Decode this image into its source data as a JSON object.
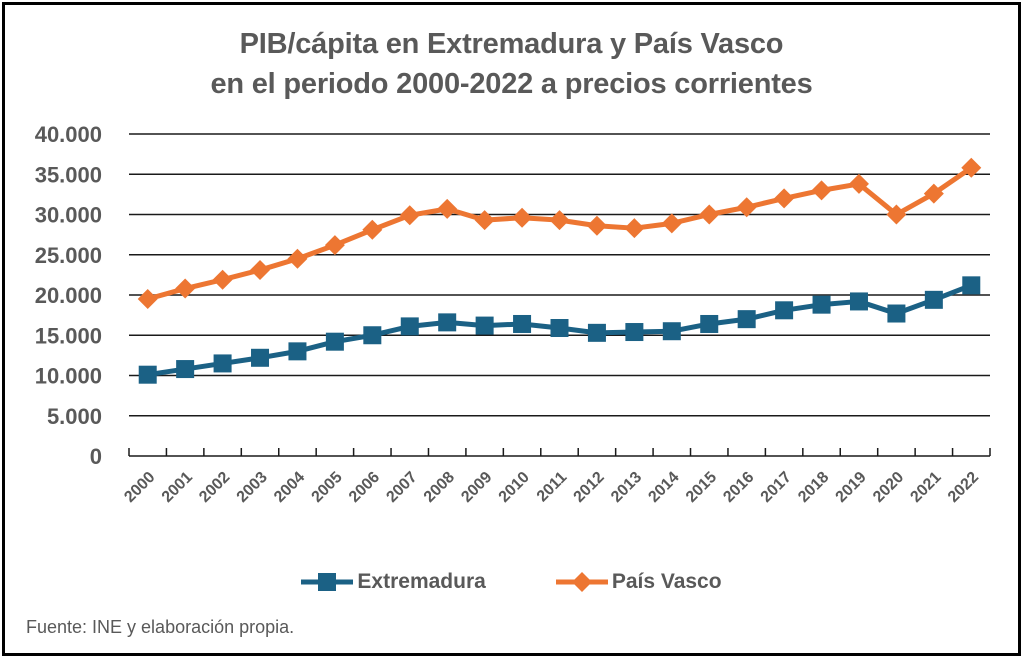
{
  "chart_data": {
    "type": "line",
    "title_line1": "PIB/cápita en Extremadura y País Vasco",
    "title_line2": "en el periodo 2000-2022 a precios corrientes",
    "xlabel": "",
    "ylabel": "",
    "x": [
      "2000",
      "2001",
      "2002",
      "2003",
      "2004",
      "2005",
      "2006",
      "2007",
      "2008",
      "2009",
      "2010",
      "2011",
      "2012",
      "2013",
      "2014",
      "2015",
      "2016",
      "2017",
      "2018",
      "2019",
      "2020",
      "2021",
      "2022"
    ],
    "ylim": [
      0,
      40000
    ],
    "yticks": [
      0,
      5000,
      10000,
      15000,
      20000,
      25000,
      30000,
      35000,
      40000
    ],
    "ytick_labels": [
      "0",
      "5.000",
      "10.000",
      "15.000",
      "20.000",
      "25.000",
      "30.000",
      "35.000",
      "40.000"
    ],
    "grid": true,
    "legend_position": "bottom",
    "series": [
      {
        "name": "Extremadura",
        "color": "#1B6185",
        "marker": "square",
        "values": [
          10100,
          10800,
          11500,
          12200,
          13000,
          14200,
          15000,
          16100,
          16600,
          16200,
          16400,
          15900,
          15300,
          15400,
          15500,
          16400,
          17000,
          18100,
          18800,
          19200,
          17700,
          19400,
          21200
        ]
      },
      {
        "name": "País Vasco",
        "color": "#ED7632",
        "marker": "diamond",
        "values": [
          19500,
          20800,
          21900,
          23100,
          24500,
          26200,
          28100,
          29900,
          30700,
          29300,
          29600,
          29300,
          28600,
          28300,
          28900,
          30000,
          30900,
          32000,
          33000,
          33800,
          30000,
          32600,
          35800
        ]
      }
    ],
    "source": "Fuente: INE y elaboración propia."
  }
}
